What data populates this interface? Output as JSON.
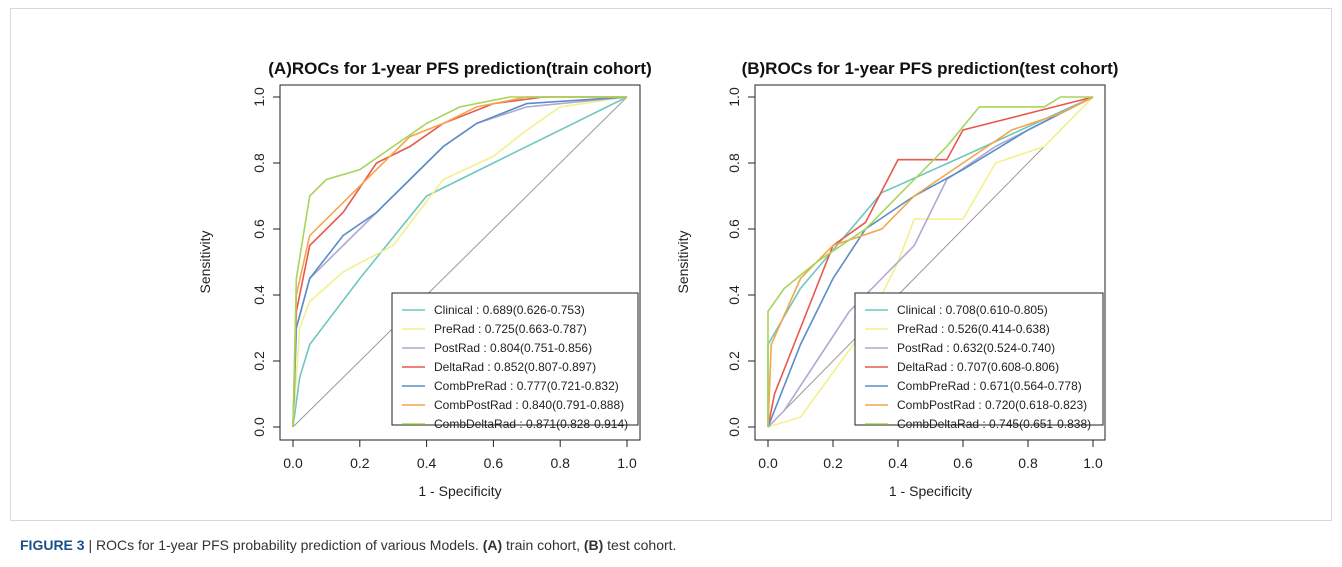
{
  "chart_data": [
    {
      "type": "line",
      "title": "(A)ROCs for 1-year PFS prediction(train cohort)",
      "x_label": "1 - Specificity",
      "y_label": "Sensitivity",
      "xlim": [
        0,
        1
      ],
      "ylim": [
        0,
        1
      ],
      "xticks": [
        {
          "value": 0,
          "label": "0.0"
        },
        0.2,
        0.4,
        0.6,
        0.8,
        {
          "value": 1,
          "label": "1.0"
        }
      ],
      "yticks": [
        {
          "value": 0,
          "label": "0.0"
        },
        0.2,
        0.4,
        0.6,
        0.8,
        {
          "value": 1,
          "label": "1.0"
        }
      ],
      "legend": "bottom-right",
      "series": [
        {
          "name": "Clinical : 0.689(0.626-0.753)",
          "color": "#6fc7c0",
          "x": [
            0,
            0.02,
            0.05,
            0.2,
            0.4,
            0.6,
            0.8,
            1
          ],
          "values": [
            0,
            0.15,
            0.25,
            0.45,
            0.7,
            0.8,
            0.9,
            1
          ]
        },
        {
          "name": "PreRad : 0.725(0.663-0.787)",
          "color": "#f3f08e",
          "x": [
            0,
            0.02,
            0.05,
            0.15,
            0.3,
            0.45,
            0.6,
            0.7,
            0.8,
            1
          ],
          "values": [
            0,
            0.3,
            0.38,
            0.47,
            0.55,
            0.75,
            0.82,
            0.9,
            0.97,
            1
          ]
        },
        {
          "name": "PostRad : 0.804(0.751-0.856)",
          "color": "#b0a9d1",
          "x": [
            0,
            0.01,
            0.05,
            0.15,
            0.25,
            0.35,
            0.45,
            0.55,
            0.7,
            1
          ],
          "values": [
            0,
            0.3,
            0.45,
            0.55,
            0.65,
            0.75,
            0.85,
            0.92,
            0.97,
            1
          ]
        },
        {
          "name": "DeltaRad : 0.852(0.807-0.897)",
          "color": "#e8584e",
          "x": [
            0,
            0.01,
            0.05,
            0.15,
            0.25,
            0.35,
            0.45,
            0.6,
            0.75,
            1
          ],
          "values": [
            0,
            0.35,
            0.55,
            0.65,
            0.8,
            0.85,
            0.92,
            0.98,
            1,
            1
          ]
        },
        {
          "name": "CombPreRad : 0.777(0.721-0.832)",
          "color": "#5a8ec6",
          "x": [
            0,
            0.01,
            0.05,
            0.15,
            0.25,
            0.35,
            0.45,
            0.55,
            0.7,
            1
          ],
          "values": [
            0,
            0.3,
            0.45,
            0.58,
            0.65,
            0.75,
            0.85,
            0.92,
            0.98,
            1
          ]
        },
        {
          "name": "CombPostRad : 0.840(0.791-0.888)",
          "color": "#f4a64a",
          "x": [
            0,
            0.01,
            0.05,
            0.15,
            0.25,
            0.35,
            0.45,
            0.55,
            0.7,
            1
          ],
          "values": [
            0,
            0.4,
            0.58,
            0.68,
            0.78,
            0.88,
            0.92,
            0.97,
            1,
            1
          ]
        },
        {
          "name": "CombDeltaRad : 0.871(0.828-0.914)",
          "color": "#a6d55a",
          "x": [
            0,
            0.01,
            0.05,
            0.1,
            0.2,
            0.3,
            0.4,
            0.5,
            0.65,
            1
          ],
          "values": [
            0,
            0.45,
            0.7,
            0.75,
            0.78,
            0.85,
            0.92,
            0.97,
            1,
            1
          ]
        }
      ]
    },
    {
      "type": "line",
      "title": "(B)ROCs for 1-year PFS prediction(test cohort)",
      "x_label": "1 - Specificity",
      "y_label": "Sensitivity",
      "xlim": [
        0,
        1
      ],
      "ylim": [
        0,
        1
      ],
      "xticks": [
        {
          "value": 0,
          "label": "0.0"
        },
        0.2,
        0.4,
        0.6,
        0.8,
        {
          "value": 1,
          "label": "1.0"
        }
      ],
      "yticks": [
        {
          "value": 0,
          "label": "0.0"
        },
        0.2,
        0.4,
        0.6,
        0.8,
        {
          "value": 1,
          "label": "1.0"
        }
      ],
      "legend": "bottom-right",
      "series": [
        {
          "name": "Clinical : 0.708(0.610-0.805)",
          "color": "#6fc7c0",
          "x": [
            0,
            0,
            0.1,
            0.35,
            0.6,
            1
          ],
          "values": [
            0,
            0.25,
            0.42,
            0.71,
            0.82,
            1
          ]
        },
        {
          "name": "PreRad : 0.526(0.414-0.638)",
          "color": "#f3f08e",
          "x": [
            0,
            0.1,
            0.3,
            0.4,
            0.45,
            0.6,
            0.7,
            0.85,
            1
          ],
          "values": [
            0,
            0.03,
            0.3,
            0.5,
            0.63,
            0.63,
            0.8,
            0.85,
            1
          ]
        },
        {
          "name": "PostRad : 0.632(0.524-0.740)",
          "color": "#b0a9d1",
          "x": [
            0,
            0.05,
            0.15,
            0.25,
            0.35,
            0.45,
            0.55,
            0.7,
            0.9,
            1
          ],
          "values": [
            0,
            0.05,
            0.2,
            0.35,
            0.45,
            0.55,
            0.75,
            0.85,
            0.95,
            1
          ]
        },
        {
          "name": "DeltaRad : 0.707(0.608-0.806)",
          "color": "#e8584e",
          "x": [
            0,
            0.02,
            0.1,
            0.2,
            0.3,
            0.4,
            0.55,
            0.6,
            0.8,
            1
          ],
          "values": [
            0,
            0.1,
            0.3,
            0.55,
            0.62,
            0.81,
            0.81,
            0.9,
            0.95,
            1
          ]
        },
        {
          "name": "CombPreRad : 0.671(0.564-0.778)",
          "color": "#5a8ec6",
          "x": [
            0,
            0.02,
            0.1,
            0.2,
            0.3,
            0.45,
            0.6,
            0.8,
            1
          ],
          "values": [
            0,
            0.05,
            0.25,
            0.45,
            0.6,
            0.7,
            0.78,
            0.9,
            1
          ]
        },
        {
          "name": "CombPostRad : 0.720(0.618-0.823)",
          "color": "#f4a64a",
          "x": [
            0,
            0.01,
            0.1,
            0.2,
            0.35,
            0.45,
            0.6,
            0.75,
            0.9,
            1
          ],
          "values": [
            0,
            0.25,
            0.45,
            0.55,
            0.6,
            0.7,
            0.8,
            0.9,
            0.95,
            1
          ]
        },
        {
          "name": "CombDeltaRad : 0.745(0.651-0.838)",
          "color": "#a6d55a",
          "x": [
            0,
            0,
            0.05,
            0.15,
            0.3,
            0.45,
            0.55,
            0.65,
            0.85,
            0.9,
            1
          ],
          "values": [
            0,
            0.35,
            0.42,
            0.5,
            0.6,
            0.75,
            0.85,
            0.97,
            0.97,
            1,
            1
          ]
        }
      ]
    }
  ],
  "caption": [
    "FIGURE 3",
    " | ROCs for 1-year PFS probability prediction of various Models. ",
    "(A)",
    " train cohort, ",
    "(B)",
    " test cohort."
  ]
}
